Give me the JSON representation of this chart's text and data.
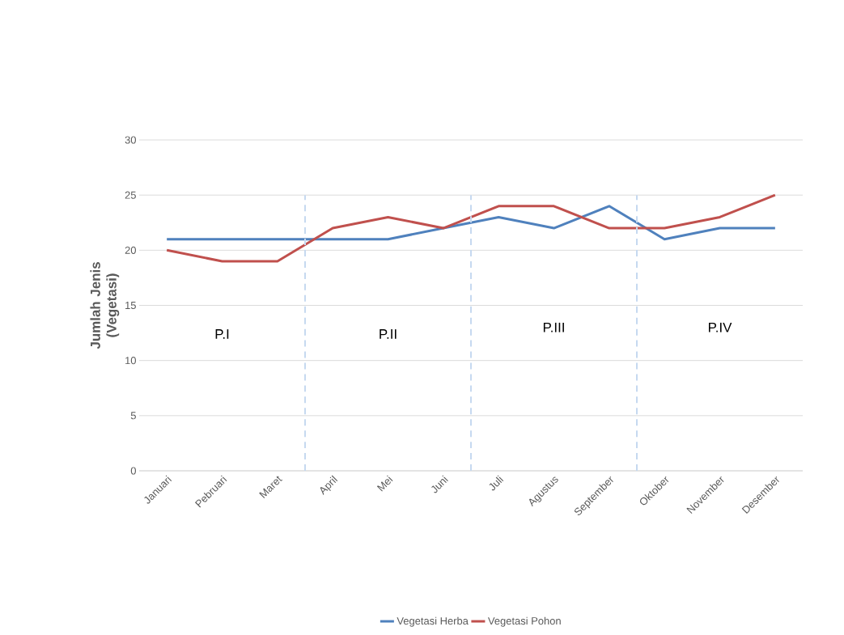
{
  "chart_data": {
    "type": "line",
    "categories": [
      "Januari",
      "Pebruari",
      "Maret",
      "April",
      "Mei",
      "Juni",
      "Juli",
      "Agustus",
      "September",
      "Oktober",
      "November",
      "Desember"
    ],
    "series": [
      {
        "name": "Vegetasi Herba",
        "color": "#4f81bd",
        "values": [
          21,
          21,
          21,
          21,
          21,
          22,
          23,
          22,
          24,
          21,
          22,
          22
        ]
      },
      {
        "name": "Vegetasi Pohon",
        "color": "#c0504d",
        "values": [
          20,
          19,
          19,
          22,
          23,
          22,
          24,
          24,
          22,
          22,
          23,
          25
        ]
      }
    ],
    "ylabel": "Jumlah Jenis (Vegetasi)",
    "ylim": [
      0,
      30
    ],
    "yticks": [
      0,
      5,
      10,
      15,
      20,
      25,
      30
    ],
    "grid": "y",
    "legend": "bottom",
    "marker": "none",
    "line_style": "solid",
    "annotations": [
      "P.I",
      "P.II",
      "P.III",
      "P.IV"
    ]
  }
}
